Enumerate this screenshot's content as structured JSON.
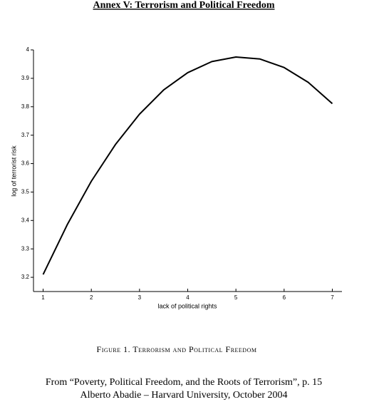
{
  "chart_data": {
    "type": "line",
    "title": "Annex V: Terrorism and Political Freedom",
    "x_label": "lack of political rights",
    "y_label": "log of terrorist risk",
    "x": [
      1,
      1.5,
      2,
      2.5,
      3,
      3.5,
      4,
      4.5,
      5,
      5.5,
      6,
      6.5,
      7
    ],
    "values": [
      3.21,
      3.385,
      3.538,
      3.667,
      3.774,
      3.859,
      3.92,
      3.959,
      3.975,
      3.968,
      3.938,
      3.886,
      3.811
    ],
    "color": "#000000",
    "xlim": [
      0.8,
      7.2
    ],
    "xticks": [
      1,
      2,
      3,
      4,
      5,
      6,
      7
    ],
    "ylim": [
      3.15,
      4
    ],
    "yticks": [
      3.2,
      3.3,
      3.4,
      3.5,
      3.6,
      3.7,
      3.8,
      3.9,
      4
    ],
    "grid": false,
    "caption": "Figure 1. Terrorism and Political Freedom",
    "source": [
      "From “Poverty, Political Freedom, and the Roots of Terrorism”, p. 15",
      "Alberto Abadie – Harvard University, October 2004"
    ]
  }
}
